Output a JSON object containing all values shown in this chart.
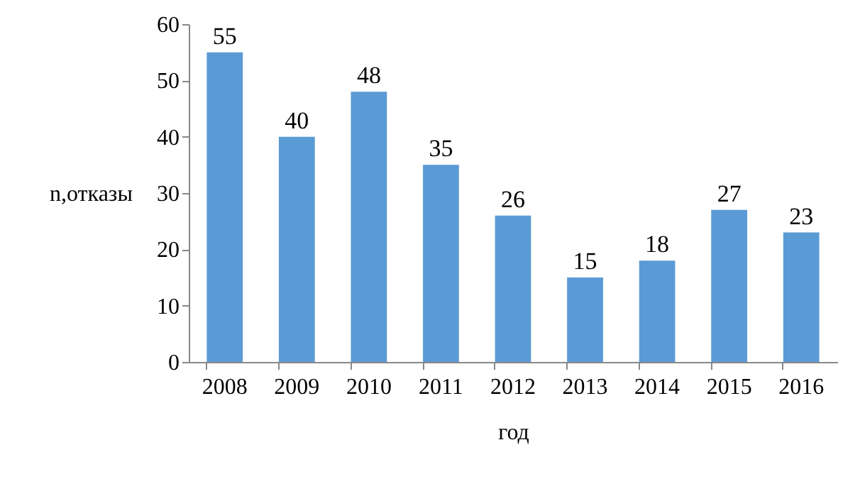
{
  "chart_data": {
    "type": "bar",
    "xlabel": "год",
    "ylabel": "n,отказы",
    "categories": [
      "2008",
      "2009",
      "2010",
      "2011",
      "2012",
      "2013",
      "2014",
      "2015",
      "2016"
    ],
    "values": [
      55,
      40,
      48,
      35,
      26,
      15,
      18,
      27,
      23
    ],
    "color": "#5b9bd5",
    "ylim": [
      0,
      60
    ],
    "yticks": [
      0,
      10,
      20,
      30,
      40,
      50,
      60
    ],
    "grid": false,
    "data_labels": true
  }
}
